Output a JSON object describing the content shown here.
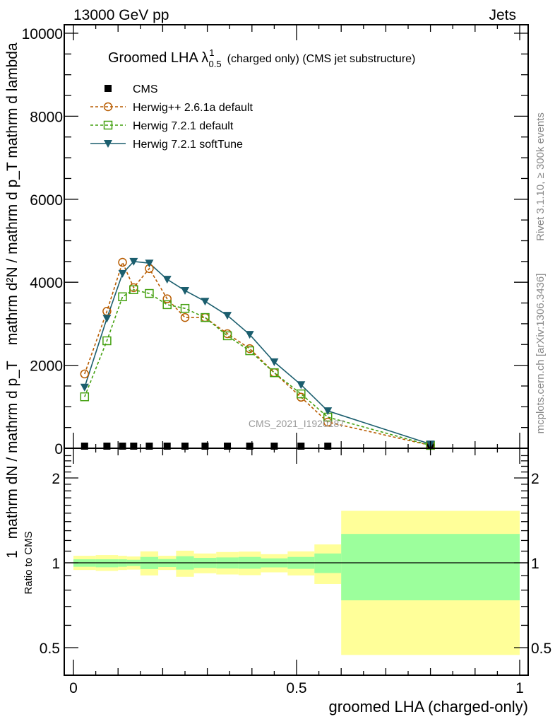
{
  "header": {
    "left": "13000 GeV pp",
    "right": "Jets"
  },
  "side_labels": {
    "rivet": "Rivet 3.1.10, ≥ 300k events",
    "mcplots": "mcplots.cern.ch [arXiv:1306.3436]"
  },
  "watermark": "CMS_2021_I1920187",
  "chart_data": [
    {
      "type": "line",
      "title": "Groomed LHA λ",
      "title_sup": "1",
      "title_sub": "0.5",
      "title_suffix": "(charged only) (CMS jet substructure)",
      "ylabel_numerator": "1",
      "ylabel_denominator": "mathrm dN / mathrm d p_T",
      "ylabel_part2": "mathrm d²N / mathrm d p_T mathrm d lambda",
      "xlim": [
        0,
        1
      ],
      "ylim": [
        0,
        10200
      ],
      "yticks": [
        0,
        2000,
        4000,
        6000,
        8000,
        10000
      ],
      "ytick_labels": [
        "0",
        "2000",
        "4000",
        "6000",
        "8000",
        "10000"
      ],
      "x": [
        0.025,
        0.075,
        0.11,
        0.135,
        0.17,
        0.21,
        0.25,
        0.295,
        0.345,
        0.395,
        0.45,
        0.51,
        0.57,
        0.8
      ],
      "bin_edges": [
        0,
        0.05,
        0.1,
        0.12,
        0.15,
        0.19,
        0.23,
        0.27,
        0.32,
        0.37,
        0.42,
        0.48,
        0.54,
        0.6,
        1.0
      ],
      "legend_position": "top-left",
      "series": [
        {
          "name": "CMS",
          "color": "#000000",
          "marker": "square-filled",
          "values": [
            0,
            0,
            0,
            0,
            0,
            0,
            0,
            0,
            0,
            0,
            0,
            0,
            0,
            0
          ]
        },
        {
          "name": "Herwig++ 2.6.1a default",
          "color": "#b85c00",
          "marker": "circle-open",
          "dash": true,
          "values": [
            1790,
            3300,
            4480,
            3870,
            4330,
            3600,
            3150,
            3150,
            2760,
            2400,
            1820,
            1230,
            630,
            70
          ]
        },
        {
          "name": "Herwig 7.2.1 default",
          "color": "#44a010",
          "marker": "square-open",
          "dash": true,
          "values": [
            1240,
            2590,
            3650,
            3820,
            3730,
            3460,
            3370,
            3150,
            2710,
            2350,
            1820,
            1310,
            750,
            70
          ]
        },
        {
          "name": "Herwig 7.2.1 softTune",
          "color": "#1b5e6e",
          "marker": "triangle-down-filled",
          "dash": false,
          "values": [
            1470,
            3130,
            4210,
            4500,
            4460,
            4070,
            3800,
            3540,
            3200,
            2740,
            2080,
            1530,
            900,
            100
          ]
        }
      ]
    },
    {
      "type": "area",
      "ylabel": "Ratio to CMS",
      "xlabel": "groomed LHA (charged-only)",
      "xticks": [
        0,
        0.5,
        1
      ],
      "xtick_labels": [
        "0",
        "0.5",
        "1"
      ],
      "yscale": "log",
      "ylim": [
        0.4,
        2.5
      ],
      "yticks": [
        0.5,
        1,
        2
      ],
      "ytick_labels": [
        "0.5",
        "1",
        "2"
      ],
      "bin_edges": [
        0,
        0.05,
        0.1,
        0.12,
        0.15,
        0.19,
        0.23,
        0.27,
        0.32,
        0.37,
        0.42,
        0.48,
        0.54,
        0.6,
        1.0
      ],
      "stat_band": {
        "color": "#9cff9c",
        "upper": [
          1.029,
          1.029,
          1.029,
          1.025,
          1.049,
          1.031,
          1.055,
          1.041,
          1.045,
          1.049,
          1.037,
          1.049,
          1.079,
          1.266
        ],
        "lower": [
          0.968,
          0.964,
          0.968,
          0.974,
          0.95,
          0.966,
          0.946,
          0.959,
          0.955,
          0.953,
          0.963,
          0.952,
          0.92,
          0.736
        ]
      },
      "total_band": {
        "color": "#ffff99",
        "upper": [
          1.059,
          1.065,
          1.059,
          1.053,
          1.098,
          1.059,
          1.104,
          1.079,
          1.092,
          1.096,
          1.073,
          1.098,
          1.162,
          1.529
        ],
        "lower": [
          0.943,
          0.936,
          0.943,
          0.946,
          0.902,
          0.943,
          0.892,
          0.918,
          0.909,
          0.904,
          0.925,
          0.902,
          0.841,
          0.471
        ]
      }
    }
  ]
}
